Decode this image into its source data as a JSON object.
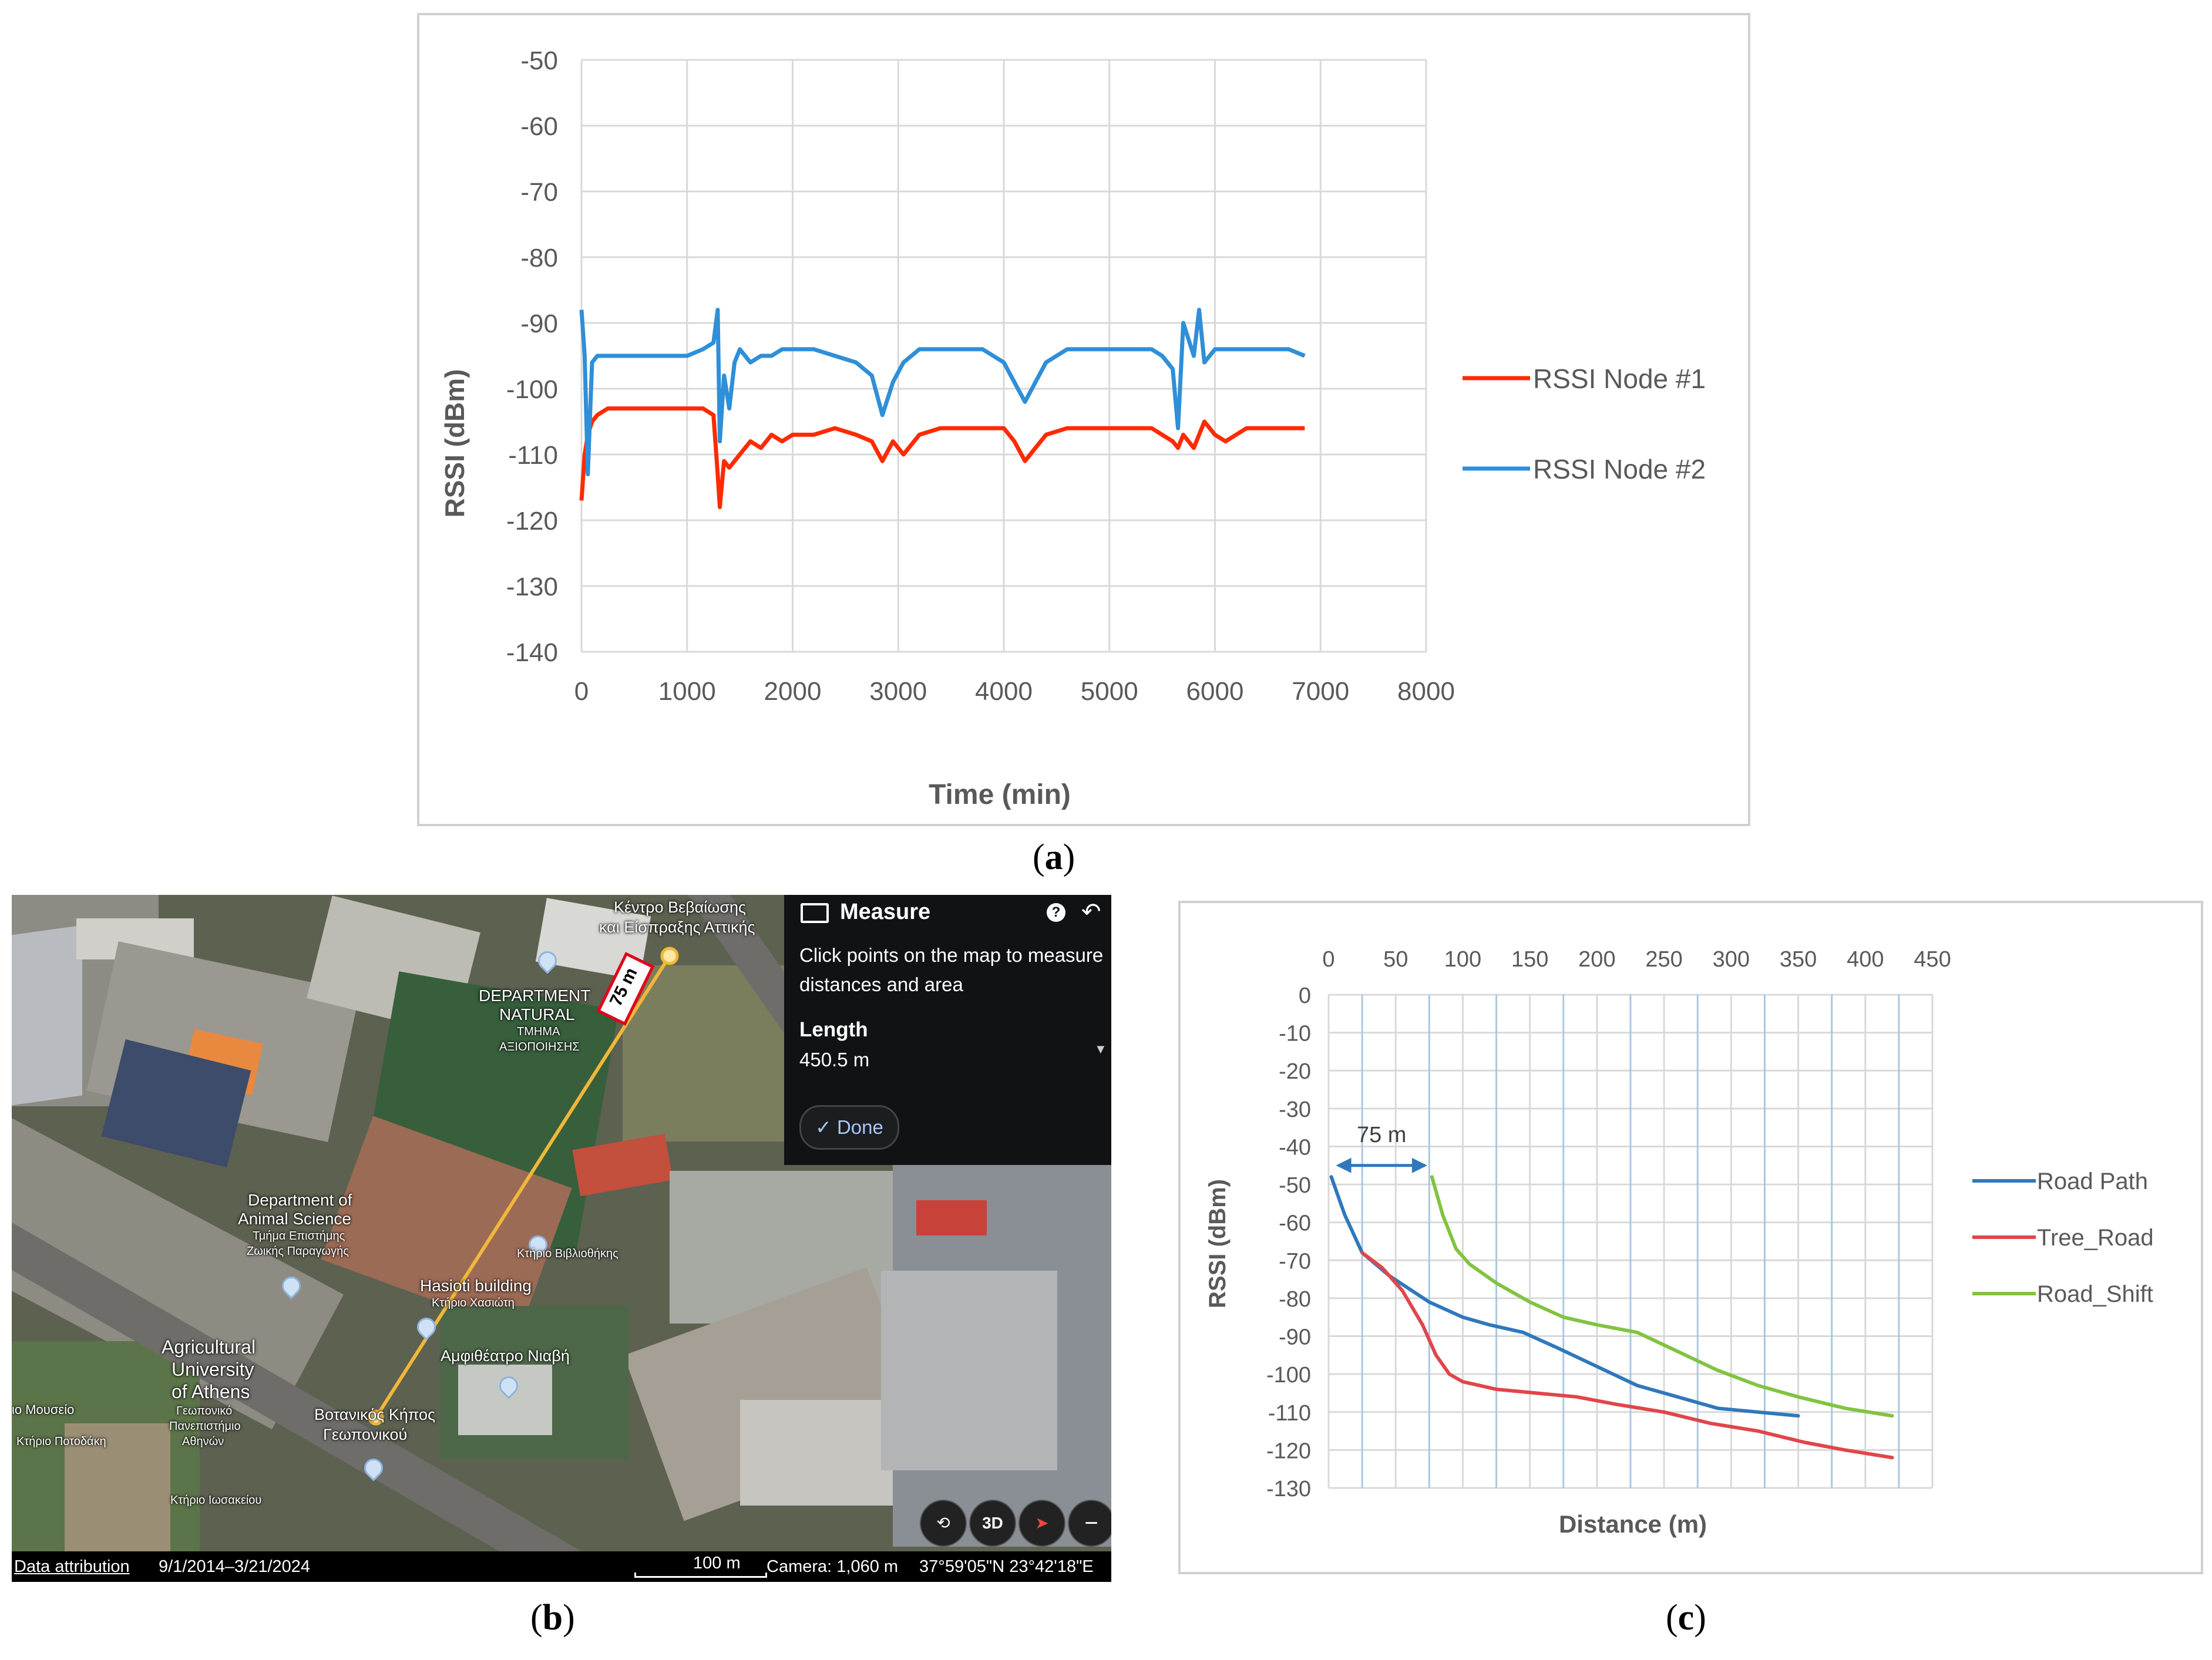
{
  "captions": {
    "a": "a",
    "b": "b",
    "c": "c"
  },
  "chart_data": [
    {
      "type": "line",
      "panel": "a",
      "xlabel": "Time (min)",
      "ylabel": "RSSI (dBm)",
      "xlim": [
        0,
        8000
      ],
      "ylim": [
        -140,
        -50
      ],
      "xticks": [
        0,
        1000,
        2000,
        3000,
        4000,
        5000,
        6000,
        7000,
        8000
      ],
      "yticks": [
        -50,
        -60,
        -70,
        -80,
        -90,
        -100,
        -110,
        -120,
        -130,
        -140
      ],
      "grid": true,
      "legend": "right",
      "series": [
        {
          "name": "RSSI Node #1",
          "color": "#ff2a00",
          "x": [
            0,
            30,
            60,
            100,
            150,
            250,
            400,
            600,
            800,
            1000,
            1150,
            1250,
            1290,
            1310,
            1350,
            1400,
            1500,
            1600,
            1700,
            1800,
            1900,
            2000,
            2200,
            2400,
            2600,
            2750,
            2850,
            2950,
            3050,
            3200,
            3400,
            3600,
            3800,
            4000,
            4100,
            4200,
            4300,
            4400,
            4600,
            4800,
            5000,
            5200,
            5400,
            5500,
            5600,
            5650,
            5700,
            5800,
            5900,
            6000,
            6100,
            6300,
            6500,
            6700,
            6850
          ],
          "y": [
            -117,
            -110,
            -107,
            -105,
            -104,
            -103,
            -103,
            -103,
            -103,
            -103,
            -103,
            -104,
            -113,
            -118,
            -111,
            -112,
            -110,
            -108,
            -109,
            -107,
            -108,
            -107,
            -107,
            -106,
            -107,
            -108,
            -111,
            -108,
            -110,
            -107,
            -106,
            -106,
            -106,
            -106,
            -108,
            -111,
            -109,
            -107,
            -106,
            -106,
            -106,
            -106,
            -106,
            -107,
            -108,
            -109,
            -107,
            -109,
            -105,
            -107,
            -108,
            -106,
            -106,
            -106,
            -106
          ]
        },
        {
          "name": "RSSI Node #2",
          "color": "#2f8fd8",
          "x": [
            0,
            30,
            60,
            100,
            150,
            250,
            400,
            600,
            800,
            1000,
            1150,
            1250,
            1290,
            1310,
            1350,
            1400,
            1450,
            1500,
            1600,
            1700,
            1800,
            1900,
            2000,
            2200,
            2400,
            2600,
            2750,
            2800,
            2850,
            2950,
            3050,
            3200,
            3400,
            3600,
            3800,
            4000,
            4100,
            4200,
            4300,
            4400,
            4600,
            4800,
            5000,
            5200,
            5400,
            5500,
            5600,
            5650,
            5700,
            5800,
            5850,
            5900,
            6000,
            6100,
            6300,
            6500,
            6700,
            6850
          ],
          "y": [
            -88,
            -95,
            -113,
            -96,
            -95,
            -95,
            -95,
            -95,
            -95,
            -95,
            -94,
            -93,
            -88,
            -108,
            -98,
            -103,
            -96,
            -94,
            -96,
            -95,
            -95,
            -94,
            -94,
            -94,
            -95,
            -96,
            -98,
            -101,
            -104,
            -99,
            -96,
            -94,
            -94,
            -94,
            -94,
            -96,
            -99,
            -102,
            -99,
            -96,
            -94,
            -94,
            -94,
            -94,
            -94,
            -95,
            -97,
            -106,
            -90,
            -95,
            -88,
            -96,
            -94,
            -94,
            -94,
            -94,
            -94,
            -95
          ]
        }
      ]
    },
    {
      "type": "line",
      "panel": "c",
      "xlabel": "Distance (m)",
      "ylabel": "RSSI (dBm)",
      "xlim": [
        0,
        450
      ],
      "ylim": [
        -130,
        0
      ],
      "xticks": [
        0,
        50,
        100,
        150,
        200,
        250,
        300,
        350,
        400,
        450
      ],
      "yticks": [
        0,
        -10,
        -20,
        -30,
        -40,
        -50,
        -60,
        -70,
        -80,
        -90,
        -100,
        -110,
        -120,
        -130
      ],
      "xaxis_position": "top",
      "grid": true,
      "legend": "right",
      "annotation": "75 m",
      "series": [
        {
          "name": "Road Path",
          "color": "#2f78bd",
          "x": [
            2,
            12,
            25,
            45,
            75,
            100,
            120,
            145,
            170,
            200,
            230,
            260,
            290,
            320,
            350
          ],
          "y": [
            -48,
            -58,
            -68,
            -74,
            -81,
            -85,
            -87,
            -89,
            -93,
            -98,
            -103,
            -106,
            -109,
            -110,
            -111
          ]
        },
        {
          "name": "Tree_Road",
          "color": "#e0464a",
          "x": [
            25,
            40,
            55,
            70,
            80,
            90,
            100,
            125,
            155,
            185,
            215,
            250,
            285,
            320,
            355,
            385,
            420
          ],
          "y": [
            -68,
            -72,
            -78,
            -87,
            -95,
            -100,
            -102,
            -104,
            -105,
            -106,
            -108,
            -110,
            -113,
            -115,
            -118,
            -120,
            -122
          ]
        },
        {
          "name": "Road_Shift",
          "color": "#82c341",
          "x": [
            77,
            85,
            95,
            105,
            125,
            150,
            175,
            200,
            230,
            260,
            290,
            320,
            350,
            385,
            420
          ],
          "y": [
            -48,
            -58,
            -67,
            -71,
            -76,
            -81,
            -85,
            -87,
            -89,
            -94,
            -99,
            -103,
            -106,
            -109,
            -111
          ]
        }
      ]
    }
  ],
  "map": {
    "labels": {
      "kentro": "Κέντρο Βεβαίωσης",
      "kentro2": "και Είσπραξης Αττικής",
      "dept_natural": "DEPARTMENT",
      "dept_natural2": "NATURAL",
      "tmima": "ΤΜΗΜΑ",
      "axiopoiisis": "ΑΞΙΟΠΟΙΗΣΗΣ",
      "dept_animal": "Department of",
      "dept_animal2": "Animal Science",
      "tmima_epist": "Τμήμα Επιστήμης",
      "zoikis": "Ζωικής Παραγωγής",
      "ktirio_vivl": "Κτήριο Βιβλιοθήκης",
      "hasioti": "Hasioti building",
      "ktirio_xas": "Κτήριο Χασιώτη",
      "amfitheatro": "Αμφιθέατρο Νιαβή",
      "aua1": "Agricultural",
      "aua2": "University",
      "aua3": "of Athens",
      "geop": "Γεωπονικό",
      "panep": "Πανεπιστήμιο",
      "athinon": "Αθηνών",
      "botan": "Βοτανικός Κήπος",
      "geoponikou": "Γεωπονικού",
      "mouseio": "ιο Μουσείο",
      "ktirio_pot": "Κτήριο Ποτοδάκη",
      "ktirio_ios": "Κτήριο Ιωσακείου",
      "scale_badge": "75 m"
    },
    "measure": {
      "title": "Measure",
      "description": "Click points on the map to measure distances and area",
      "length_label": "Length",
      "length_value": "450.5 m",
      "done": "✓ Done"
    },
    "bottom": {
      "attribution": "Data attribution",
      "dates": "9/1/2014–3/21/2024",
      "scale": "100 m",
      "camera": "Camera: 1,060 m",
      "coords": "37°59'05\"N 23°42'18\"E"
    },
    "controls": {
      "three_d": "3D"
    }
  }
}
